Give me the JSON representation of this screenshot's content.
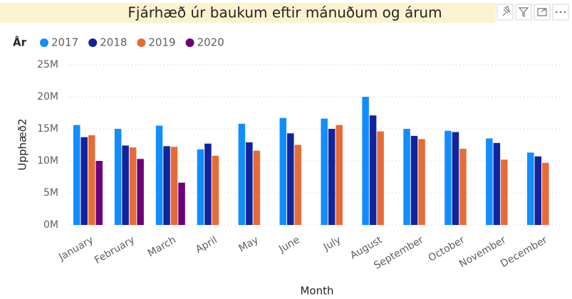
{
  "chart_data": {
    "type": "bar",
    "title": "Fjárhæð úr baukum eftir mánuðum og árum",
    "legend_title": "År",
    "x_label": "Month",
    "y_label": "Upphæð2",
    "categories": [
      "January",
      "February",
      "March",
      "April",
      "May",
      "June",
      "July",
      "August",
      "September",
      "October",
      "November",
      "December"
    ],
    "series": [
      {
        "name": "2017",
        "color": "#118dff",
        "values": [
          15600000,
          15000000,
          15500000,
          11800000,
          15800000,
          16700000,
          16600000,
          20000000,
          15000000,
          14700000,
          13500000,
          11300000
        ]
      },
      {
        "name": "2018",
        "color": "#12239e",
        "values": [
          13700000,
          12400000,
          12300000,
          12700000,
          12900000,
          14300000,
          15000000,
          17100000,
          13900000,
          14500000,
          12800000,
          10700000
        ]
      },
      {
        "name": "2019",
        "color": "#e66c37",
        "values": [
          14000000,
          12100000,
          12200000,
          10800000,
          11600000,
          12500000,
          15600000,
          14600000,
          13400000,
          11900000,
          10200000,
          9700000
        ]
      },
      {
        "name": "2020",
        "color": "#6b007b",
        "values": [
          10000000,
          10300000,
          6600000,
          null,
          null,
          null,
          null,
          null,
          null,
          null,
          null,
          null
        ]
      }
    ],
    "ylim": [
      0,
      25000000
    ],
    "yticks": [
      {
        "value": 0,
        "label": "0M"
      },
      {
        "value": 5000000,
        "label": "5M"
      },
      {
        "value": 10000000,
        "label": "10M"
      },
      {
        "value": 15000000,
        "label": "15M"
      },
      {
        "value": 20000000,
        "label": "20M"
      },
      {
        "value": 25000000,
        "label": "25M"
      }
    ],
    "grid": true
  }
}
